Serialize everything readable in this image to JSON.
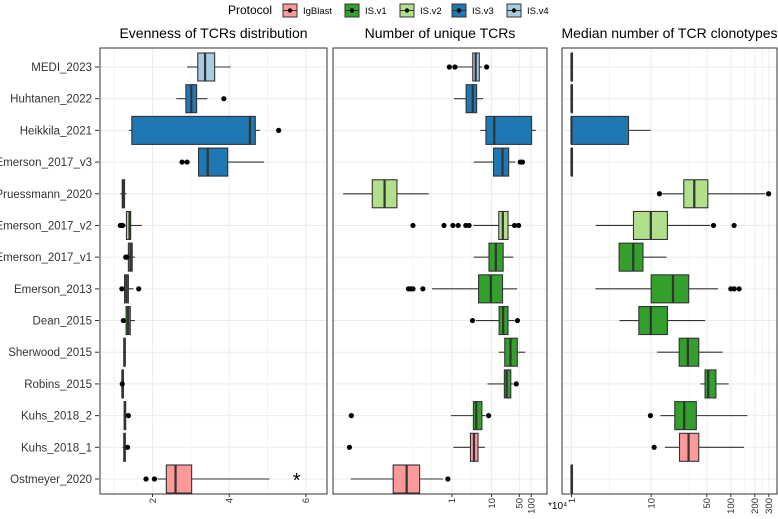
{
  "legend": {
    "title": "Protocol",
    "items": [
      {
        "label": "IgBlast",
        "color": "#FB9A99"
      },
      {
        "label": "IS.v1",
        "color": "#33A02C"
      },
      {
        "label": "IS.v2",
        "color": "#B2DF8A"
      },
      {
        "label": "IS.v3",
        "color": "#1F78B4"
      },
      {
        "label": "IS.v4",
        "color": "#A6CEE3"
      }
    ]
  },
  "datasets": [
    {
      "name": "MEDI_2023",
      "protocol": "IS.v4"
    },
    {
      "name": "Huhtanen_2022",
      "protocol": "IS.v3"
    },
    {
      "name": "Heikkila_2021",
      "protocol": "IS.v3"
    },
    {
      "name": "Emerson_2017_v3",
      "protocol": "IS.v3"
    },
    {
      "name": "Pruessmann_2020",
      "protocol": "IS.v2"
    },
    {
      "name": "Emerson_2017_v2",
      "protocol": "IS.v2"
    },
    {
      "name": "Emerson_2017_v1",
      "protocol": "IS.v1"
    },
    {
      "name": "Emerson_2013",
      "protocol": "IS.v1"
    },
    {
      "name": "Dean_2015",
      "protocol": "IS.v1"
    },
    {
      "name": "Sherwood_2015",
      "protocol": "IS.v1"
    },
    {
      "name": "Robins_2015",
      "protocol": "IS.v1"
    },
    {
      "name": "Kuhs_2018_2",
      "protocol": "IS.v1"
    },
    {
      "name": "Kuhs_2018_1",
      "protocol": "IgBlast"
    },
    {
      "name": "Ostmeyer_2020",
      "protocol": "IgBlast"
    }
  ],
  "chart_data": [
    {
      "type": "boxplot",
      "title": "Evenness of TCRs distribution",
      "scale": "linear",
      "xlim": [
        0.63,
        6.55
      ],
      "ticks": [
        2,
        4,
        6
      ],
      "tick_labels": [
        "2",
        "4",
        "6"
      ],
      "minor": [
        1,
        3,
        5
      ],
      "axis_suffix": "",
      "annotations": [
        {
          "dataset": "Ostmeyer_2020",
          "value": 5.76,
          "text": "*"
        }
      ],
      "boxes": [
        {
          "stats": [
            2.9,
            3.18,
            3.37,
            3.62,
            4.04
          ],
          "outliers": []
        },
        {
          "stats": [
            2.62,
            2.87,
            3.01,
            3.15,
            3.43
          ],
          "outliers": [
            3.86
          ]
        },
        {
          "stats": [
            1.39,
            1.46,
            4.54,
            4.68,
            4.8
          ],
          "outliers": [
            5.29
          ]
        },
        {
          "stats": [
            3.2,
            3.2,
            3.44,
            3.96,
            4.91
          ],
          "outliers": [
            2.77,
            2.9
          ]
        },
        {
          "stats": [
            1.16,
            1.21,
            1.23,
            1.27,
            1.32
          ],
          "outliers": []
        },
        {
          "stats": [
            1.27,
            1.32,
            1.4,
            1.43,
            1.72
          ],
          "outliers": [
            1.16,
            1.19,
            1.22
          ]
        },
        {
          "stats": [
            1.36,
            1.37,
            1.43,
            1.47,
            1.54
          ],
          "outliers": [
            1.3,
            1.33
          ]
        },
        {
          "stats": [
            1.27,
            1.27,
            1.32,
            1.37,
            1.5
          ],
          "outliers": [
            1.2,
            1.64
          ]
        },
        {
          "stats": [
            1.27,
            1.31,
            1.36,
            1.42,
            1.54
          ],
          "outliers": [
            1.24
          ]
        },
        {
          "stats": [
            1.23,
            1.25,
            1.27,
            1.29,
            1.31
          ],
          "outliers": []
        },
        {
          "stats": [
            1.19,
            1.2,
            1.22,
            1.24,
            1.25
          ],
          "outliers": [
            1.21
          ]
        },
        {
          "stats": [
            1.24,
            1.26,
            1.28,
            1.3,
            1.33
          ],
          "outliers": [
            1.37
          ]
        },
        {
          "stats": [
            1.22,
            1.25,
            1.27,
            1.29,
            1.31
          ],
          "outliers": [
            1.35
          ]
        },
        {
          "stats": [
            2.13,
            2.36,
            2.6,
            3.02,
            5.05
          ],
          "outliers": [
            1.83,
            2.05
          ]
        }
      ]
    },
    {
      "type": "boxplot",
      "title": "Number of unique TCRs",
      "scale": "log10",
      "xlim": [
        0.001,
        250
      ],
      "ticks": [
        1,
        10,
        50,
        100
      ],
      "tick_labels": [
        "1",
        "10",
        "50",
        "100"
      ],
      "minor": [
        0.1,
        0.3,
        3
      ],
      "axis_suffix": "*10⁴",
      "annotations": [],
      "boxes": [
        {
          "stats": [
            1.19,
            3.35,
            3.98,
            4.9,
            5.8
          ],
          "outliers": [
            0.86,
            1.19,
            7.5
          ]
        },
        {
          "stats": [
            1.12,
            2.28,
            3.35,
            4.2,
            6.1
          ],
          "outliers": []
        },
        {
          "stats": [
            5.2,
            7.2,
            11.7,
            102,
            131
          ],
          "outliers": []
        },
        {
          "stats": [
            3.55,
            11.2,
            18.9,
            27,
            40
          ],
          "outliers": [
            53,
            60
          ]
        },
        {
          "stats": [
            0.0018,
            0.0098,
            0.02,
            0.041,
            0.26
          ],
          "outliers": []
        },
        {
          "stats": [
            3.48,
            15.2,
            19.2,
            26,
            33
          ],
          "outliers": [
            0.104,
            0.63,
            1.06,
            1.44,
            2.24,
            2.71,
            38,
            48
          ]
        },
        {
          "stats": [
            3.55,
            8.6,
            12.8,
            19.6,
            35
          ],
          "outliers": []
        },
        {
          "stats": [
            0.316,
            4.7,
            9.6,
            18.9,
            44
          ],
          "outliers": [
            0.08,
            0.091,
            0.104,
            0.185
          ]
        },
        {
          "stats": [
            4.0,
            15.5,
            19.6,
            26,
            38
          ],
          "outliers": [
            3.3,
            45
          ]
        },
        {
          "stats": [
            15.2,
            21.5,
            30,
            44.6,
            71
          ],
          "outliers": []
        },
        {
          "stats": [
            7.9,
            21,
            24,
            30.5,
            35
          ],
          "outliers": [
            42
          ]
        },
        {
          "stats": [
            0.94,
            3.48,
            4.1,
            5.7,
            7
          ],
          "outliers": [
            0.0029,
            8.4
          ]
        },
        {
          "stats": [
            1.08,
            2.93,
            3.6,
            4.55,
            6.8
          ],
          "outliers": [
            0.0026
          ]
        },
        {
          "stats": [
            0.0028,
            0.033,
            0.072,
            0.153,
            0.6
          ],
          "outliers": [
            0.79
          ]
        }
      ]
    },
    {
      "type": "boxplot",
      "title": "Median number of TCR clonotypes",
      "scale": "log10",
      "xlim": [
        0.76,
        380
      ],
      "ticks": [
        1,
        10,
        50,
        100,
        200,
        300
      ],
      "tick_labels": [
        "1",
        "10",
        "50",
        "100",
        "200",
        "300"
      ],
      "minor": [
        3,
        30,
        150,
        250
      ],
      "axis_suffix": "",
      "annotations": [],
      "boxes": [
        {
          "stats": [
            1,
            1,
            1,
            1,
            1
          ],
          "outliers": []
        },
        {
          "stats": [
            1,
            1,
            1,
            1,
            1
          ],
          "outliers": []
        },
        {
          "stats": [
            1,
            1,
            1,
            5.2,
            9.9
          ],
          "outliers": []
        },
        {
          "stats": [
            1,
            1,
            1,
            1,
            1
          ],
          "outliers": []
        },
        {
          "stats": [
            13.8,
            25.7,
            34.8,
            51.5,
            270
          ],
          "outliers": [
            12.7,
            298
          ]
        },
        {
          "stats": [
            2.02,
            6.0,
            9.9,
            16.0,
            55
          ],
          "outliers": [
            60.6,
            110
          ]
        },
        {
          "stats": [
            3.96,
            3.96,
            5.96,
            7.9,
            15.6
          ],
          "outliers": []
        },
        {
          "stats": [
            2.0,
            10,
            18.8,
            29.6,
            69
          ],
          "outliers": [
            100,
            110,
            127
          ]
        },
        {
          "stats": [
            4.0,
            7.0,
            9.9,
            16,
            47.6
          ],
          "outliers": []
        },
        {
          "stats": [
            11.9,
            22.5,
            28.9,
            39.6,
            79
          ],
          "outliers": []
        },
        {
          "stats": [
            41.6,
            47.5,
            52,
            65,
            94
          ],
          "outliers": []
        },
        {
          "stats": [
            13.1,
            19.8,
            26,
            36.9,
            161
          ],
          "outliers": [
            9.8
          ]
        },
        {
          "stats": [
            14.9,
            22.7,
            29.5,
            39.6,
            146
          ],
          "outliers": [
            10.9
          ]
        },
        {
          "stats": [
            1,
            1,
            1,
            1,
            1
          ],
          "outliers": []
        }
      ]
    }
  ]
}
